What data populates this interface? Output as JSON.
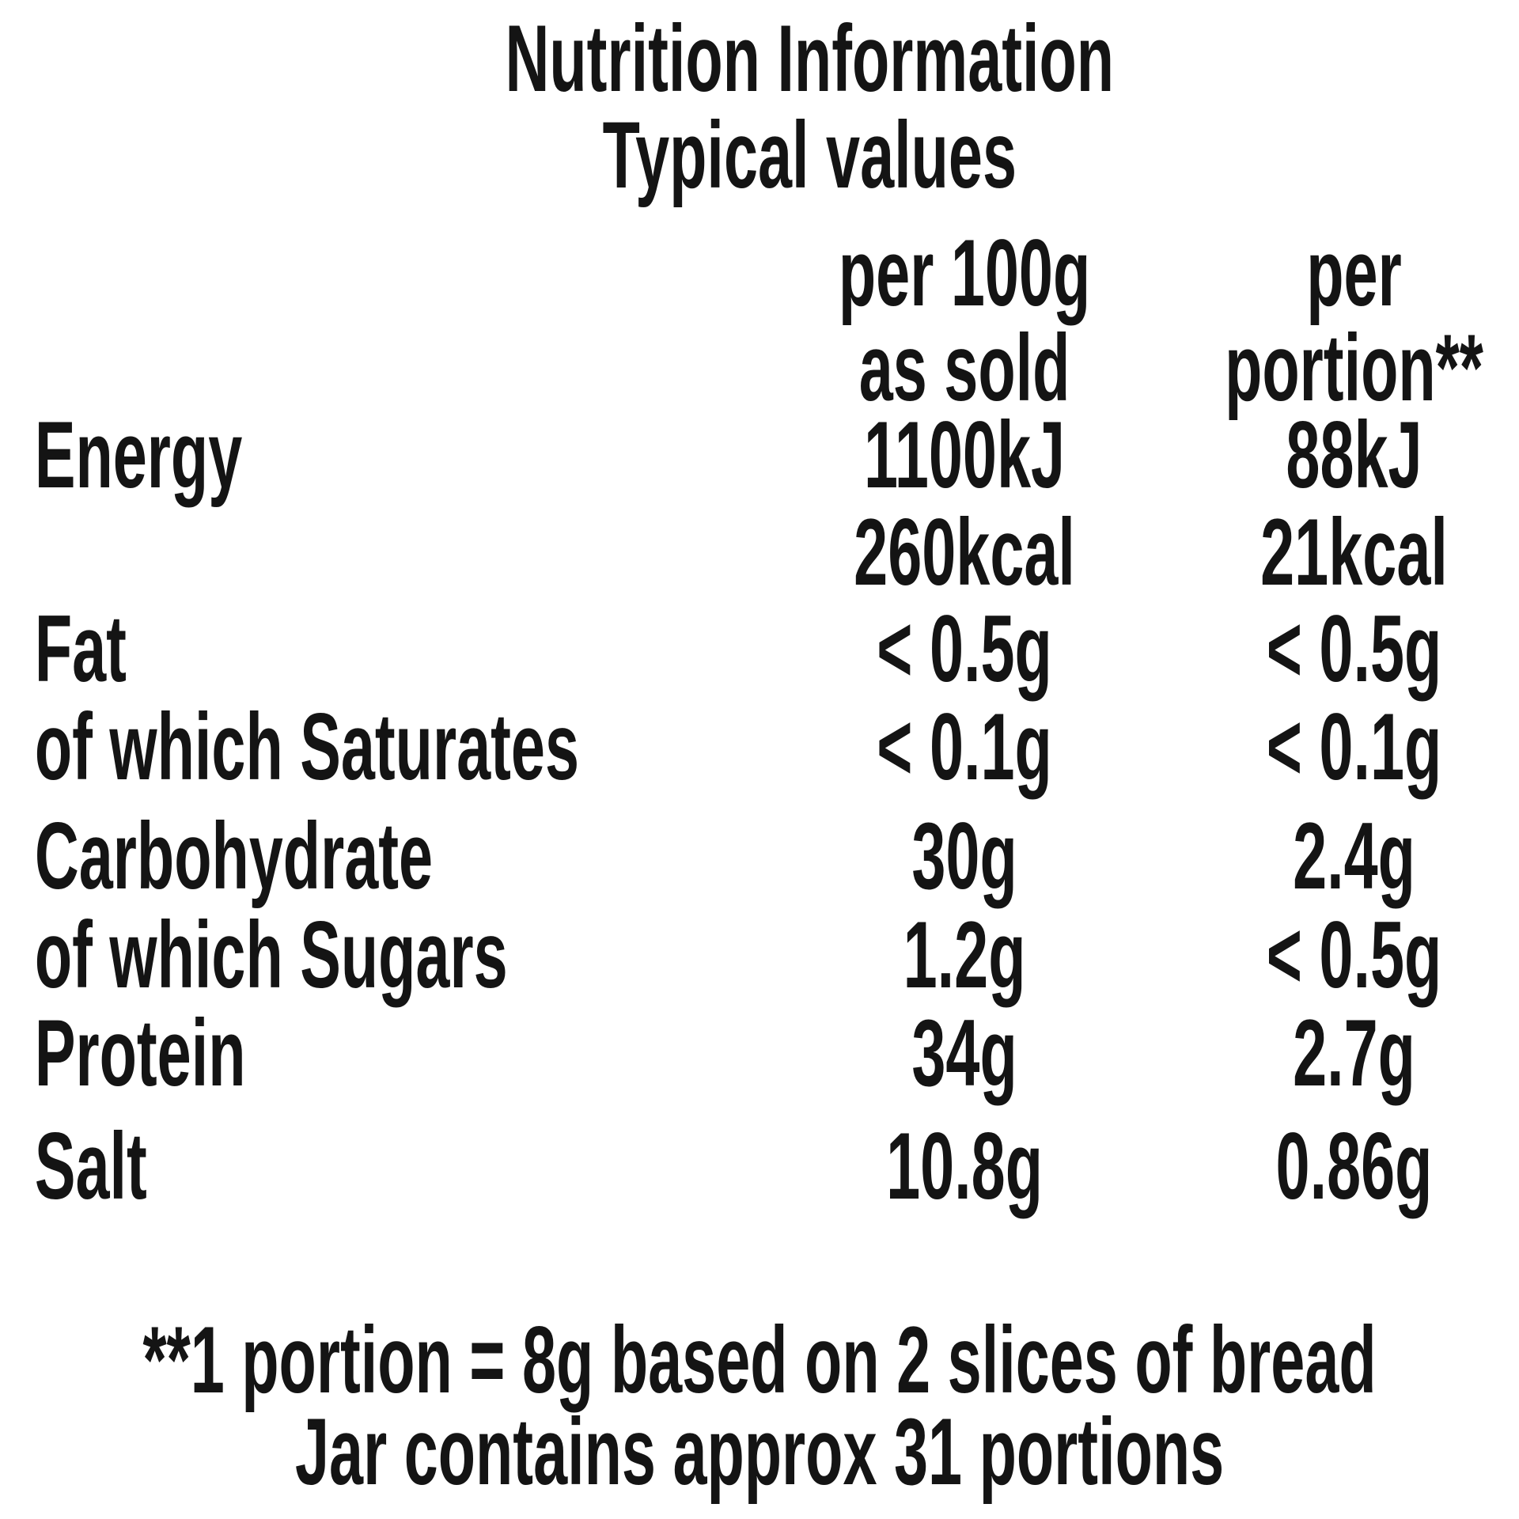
{
  "label": {
    "title_line1": "Nutrition Information",
    "title_line2": "Typical values",
    "columns": {
      "per_100g_line1": "per 100g",
      "per_100g_line2": "as sold",
      "per_portion_line1": "per",
      "per_portion_line2": "portion**"
    },
    "rows": [
      {
        "label": "Energy",
        "per_100g": [
          "1100kJ",
          "260kcal"
        ],
        "per_portion": [
          "88kJ",
          "21kcal"
        ]
      },
      {
        "label": "Fat",
        "per_100g": [
          "< 0.5g"
        ],
        "per_portion": [
          "< 0.5g"
        ]
      },
      {
        "label": "of which Saturates",
        "per_100g": [
          "< 0.1g"
        ],
        "per_portion": [
          "< 0.1g"
        ]
      },
      {
        "label": "Carbohydrate",
        "per_100g": [
          "30g"
        ],
        "per_portion": [
          "2.4g"
        ]
      },
      {
        "label": "of which Sugars",
        "per_100g": [
          "1.2g"
        ],
        "per_portion": [
          "< 0.5g"
        ]
      },
      {
        "label": "Protein",
        "per_100g": [
          "34g"
        ],
        "per_portion": [
          "2.7g"
        ]
      },
      {
        "label": "Salt",
        "per_100g": [
          "10.8g"
        ],
        "per_portion": [
          "0.86g"
        ]
      }
    ],
    "footnote_line1": "**1 portion = 8g based on 2 slices of bread",
    "footnote_line2": "Jar contains approx 31 portions"
  },
  "colors": {
    "text": "#141414",
    "background": "#ffffff"
  }
}
